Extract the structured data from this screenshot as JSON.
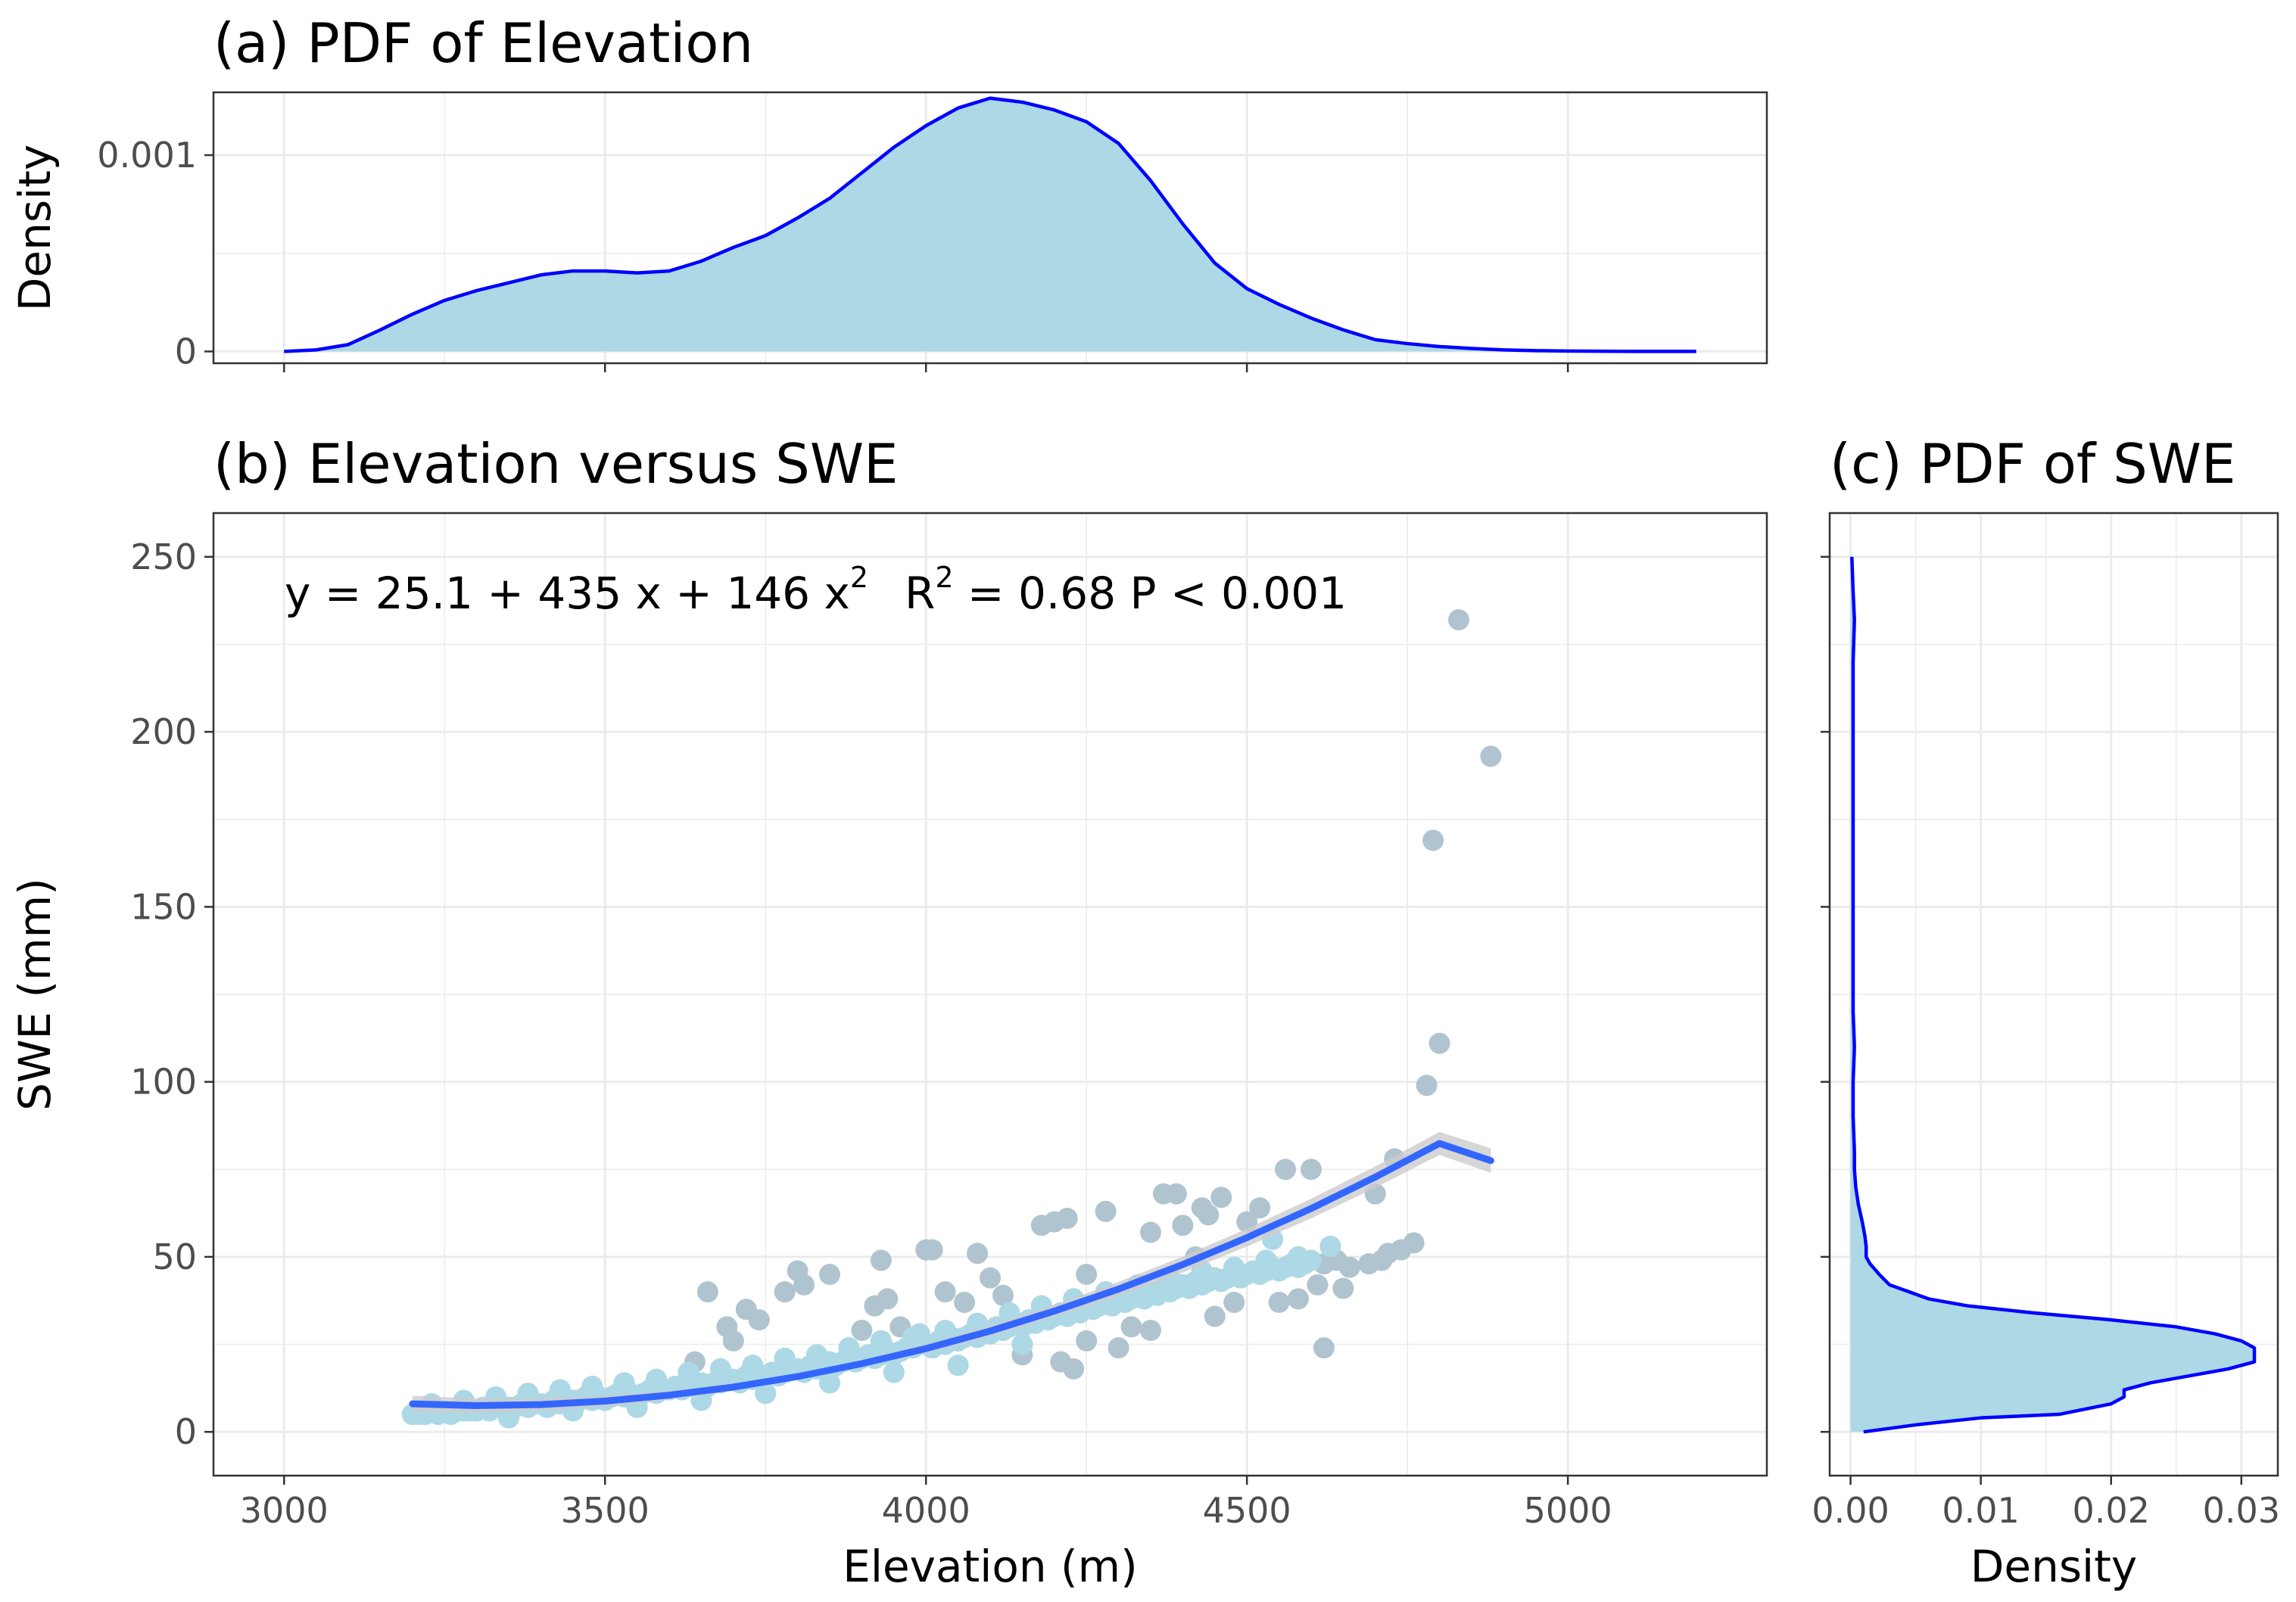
{
  "chart_data": [
    {
      "type": "area",
      "title": "(a) PDF of Elevation",
      "xlabel": "",
      "ylabel": "Density",
      "xlim": [
        2890,
        5310
      ],
      "ylim": [
        -6e-05,
        0.00132
      ],
      "x_ticks": [
        3000,
        3500,
        4000,
        4500,
        5000
      ],
      "y_ticks": [
        0,
        0.001
      ],
      "y_tick_labels": [
        "0",
        "0.001"
      ],
      "grid": true,
      "fill_color": "#add8e6",
      "line_color": "#0000ff",
      "series": [
        {
          "x": [
            3000,
            3050,
            3100,
            3150,
            3200,
            3250,
            3300,
            3350,
            3400,
            3450,
            3500,
            3550,
            3600,
            3650,
            3700,
            3750,
            3800,
            3850,
            3900,
            3950,
            4000,
            4050,
            4100,
            4150,
            4200,
            4250,
            4300,
            4350,
            4400,
            4450,
            4500,
            4550,
            4600,
            4650,
            4700,
            4750,
            4800,
            4850,
            4900,
            4950,
            5000,
            5050,
            5100,
            5150,
            5200
          ],
          "y": [
            0.0,
            8e-06,
            3.5e-05,
            0.00011,
            0.00019,
            0.00026,
            0.00031,
            0.00035,
            0.00039,
            0.00041,
            0.00041,
            0.0004,
            0.00041,
            0.00046,
            0.00053,
            0.00059,
            0.00068,
            0.00078,
            0.00091,
            0.00104,
            0.00115,
            0.00124,
            0.00129,
            0.00127,
            0.00123,
            0.00117,
            0.00106,
            0.00087,
            0.00065,
            0.00045,
            0.00032,
            0.00024,
            0.00017,
            0.00011,
            6e-05,
            4e-05,
            2.5e-05,
            1.5e-05,
            8e-06,
            4e-06,
            2e-06,
            1e-06,
            0.0,
            0.0,
            0.0
          ]
        }
      ]
    },
    {
      "type": "scatter",
      "title": "(b) Elevation versus SWE",
      "xlabel": "Elevation (m)",
      "ylabel": "SWE (mm)",
      "xlim": [
        2890,
        5310
      ],
      "ylim": [
        -12.5,
        262.5
      ],
      "x_ticks": [
        3000,
        3500,
        4000,
        4500,
        5000
      ],
      "y_ticks": [
        0,
        50,
        100,
        150,
        200,
        250
      ],
      "grid": true,
      "annotation": {
        "y_eq": "y = 25.1 + 435 x + 146 x",
        "r_label": "R",
        "r_eq": " = 0.68   P < 0.001",
        "superscript": "2"
      },
      "point_color_scattered": "#b0c4d0",
      "point_color_dense": "#add8e6",
      "fit_color": "#3366ff",
      "ribbon_color": "#cccccc",
      "fit": {
        "x": [
          3200,
          3300,
          3400,
          3500,
          3600,
          3700,
          3800,
          3900,
          4000,
          4100,
          4200,
          4300,
          4400,
          4500,
          4600,
          4700,
          4800,
          4880
        ],
        "y": [
          8.0,
          7.5,
          7.8,
          8.8,
          10.5,
          12.8,
          15.8,
          19.5,
          23.8,
          28.8,
          34.5,
          40.8,
          47.8,
          55.5,
          63.8,
          72.8,
          82.4,
          77.5
        ]
      },
      "points": [
        [
          3200,
          5
        ],
        [
          3210,
          5
        ],
        [
          3220,
          5
        ],
        [
          3230,
          6
        ],
        [
          3240,
          5
        ],
        [
          3250,
          6
        ],
        [
          3260,
          5
        ],
        [
          3270,
          6
        ],
        [
          3280,
          6
        ],
        [
          3290,
          6
        ],
        [
          3300,
          6
        ],
        [
          3310,
          7
        ],
        [
          3320,
          6
        ],
        [
          3330,
          7
        ],
        [
          3340,
          7
        ],
        [
          3350,
          7
        ],
        [
          3360,
          7
        ],
        [
          3370,
          8
        ],
        [
          3380,
          7
        ],
        [
          3390,
          8
        ],
        [
          3400,
          8
        ],
        [
          3410,
          7
        ],
        [
          3420,
          9
        ],
        [
          3430,
          8
        ],
        [
          3440,
          8
        ],
        [
          3450,
          9
        ],
        [
          3460,
          9
        ],
        [
          3470,
          10
        ],
        [
          3480,
          9
        ],
        [
          3490,
          10
        ],
        [
          3500,
          9
        ],
        [
          3510,
          10
        ],
        [
          3520,
          11
        ],
        [
          3530,
          10
        ],
        [
          3540,
          11
        ],
        [
          3550,
          10
        ],
        [
          3560,
          11
        ],
        [
          3570,
          12
        ],
        [
          3580,
          11
        ],
        [
          3590,
          12
        ],
        [
          3600,
          12
        ],
        [
          3610,
          13
        ],
        [
          3620,
          12
        ],
        [
          3630,
          13
        ],
        [
          3640,
          13
        ],
        [
          3650,
          14
        ],
        [
          3660,
          13
        ],
        [
          3670,
          14
        ],
        [
          3680,
          14
        ],
        [
          3690,
          15
        ],
        [
          3700,
          15
        ],
        [
          3710,
          14
        ],
        [
          3720,
          16
        ],
        [
          3730,
          15
        ],
        [
          3740,
          16
        ],
        [
          3750,
          16
        ],
        [
          3760,
          17
        ],
        [
          3770,
          16
        ],
        [
          3780,
          17
        ],
        [
          3790,
          18
        ],
        [
          3800,
          18
        ],
        [
          3810,
          17
        ],
        [
          3820,
          19
        ],
        [
          3830,
          18
        ],
        [
          3840,
          19
        ],
        [
          3850,
          20
        ],
        [
          3860,
          19
        ],
        [
          3870,
          20
        ],
        [
          3880,
          21
        ],
        [
          3890,
          20
        ],
        [
          3900,
          21
        ],
        [
          3910,
          22
        ],
        [
          3920,
          21
        ],
        [
          3930,
          22
        ],
        [
          3940,
          23
        ],
        [
          3950,
          22
        ],
        [
          3960,
          23
        ],
        [
          3970,
          24
        ],
        [
          3980,
          24
        ],
        [
          3990,
          25
        ],
        [
          4000,
          25
        ],
        [
          4010,
          24
        ],
        [
          4020,
          26
        ],
        [
          4030,
          25
        ],
        [
          4040,
          27
        ],
        [
          4050,
          26
        ],
        [
          4060,
          27
        ],
        [
          4070,
          28
        ],
        [
          4080,
          27
        ],
        [
          4090,
          29
        ],
        [
          4100,
          28
        ],
        [
          4110,
          30
        ],
        [
          4120,
          29
        ],
        [
          4130,
          30
        ],
        [
          4140,
          31
        ],
        [
          4150,
          30
        ],
        [
          4160,
          32
        ],
        [
          4170,
          31
        ],
        [
          4180,
          33
        ],
        [
          4190,
          32
        ],
        [
          4200,
          33
        ],
        [
          4210,
          34
        ],
        [
          4220,
          33
        ],
        [
          4230,
          35
        ],
        [
          4240,
          34
        ],
        [
          4250,
          36
        ],
        [
          4260,
          35
        ],
        [
          4270,
          36
        ],
        [
          4280,
          37
        ],
        [
          4290,
          36
        ],
        [
          4300,
          38
        ],
        [
          4310,
          37
        ],
        [
          4320,
          38
        ],
        [
          4330,
          39
        ],
        [
          4340,
          38
        ],
        [
          4350,
          40
        ],
        [
          4360,
          39
        ],
        [
          4370,
          41
        ],
        [
          4380,
          40
        ],
        [
          4390,
          41
        ],
        [
          4400,
          42
        ],
        [
          4410,
          41
        ],
        [
          4420,
          43
        ],
        [
          4430,
          42
        ],
        [
          4440,
          43
        ],
        [
          4450,
          44
        ],
        [
          4460,
          43
        ],
        [
          4470,
          44
        ],
        [
          4480,
          45
        ],
        [
          4490,
          44
        ],
        [
          4500,
          45
        ],
        [
          4510,
          46
        ],
        [
          4520,
          45
        ],
        [
          4530,
          46
        ],
        [
          4540,
          47
        ],
        [
          4550,
          46
        ],
        [
          4560,
          47
        ],
        [
          4570,
          48
        ],
        [
          4580,
          47
        ],
        [
          4590,
          48
        ],
        [
          4600,
          49
        ],
        [
          4620,
          48
        ],
        [
          4640,
          49
        ],
        [
          3230,
          8
        ],
        [
          3280,
          9
        ],
        [
          3330,
          10
        ],
        [
          3380,
          11
        ],
        [
          3430,
          12
        ],
        [
          3480,
          13
        ],
        [
          3530,
          14
        ],
        [
          3580,
          15
        ],
        [
          3630,
          17
        ],
        [
          3680,
          18
        ],
        [
          3730,
          19
        ],
        [
          3780,
          21
        ],
        [
          3830,
          22
        ],
        [
          3880,
          24
        ],
        [
          3930,
          26
        ],
        [
          3980,
          27
        ],
        [
          4030,
          29
        ],
        [
          4080,
          31
        ],
        [
          4130,
          34
        ],
        [
          4180,
          36
        ],
        [
          4230,
          38
        ],
        [
          4280,
          40
        ],
        [
          4330,
          42
        ],
        [
          4380,
          44
        ],
        [
          4430,
          46
        ],
        [
          4480,
          47
        ],
        [
          4530,
          49
        ],
        [
          4580,
          50
        ],
        [
          3350,
          4
        ],
        [
          3450,
          6
        ],
        [
          3550,
          7
        ],
        [
          3650,
          9
        ],
        [
          3750,
          11
        ],
        [
          3850,
          14
        ],
        [
          3950,
          17
        ],
        [
          4050,
          19
        ],
        [
          4150,
          22
        ],
        [
          4250,
          26
        ],
        [
          4350,
          29
        ],
        [
          4450,
          33
        ],
        [
          4550,
          37
        ],
        [
          4650,
          41
        ],
        [
          3640,
          20
        ],
        [
          3660,
          40
        ],
        [
          3690,
          30
        ],
        [
          3700,
          26
        ],
        [
          3720,
          35
        ],
        [
          3740,
          32
        ],
        [
          3780,
          40
        ],
        [
          3810,
          42
        ],
        [
          3800,
          46
        ],
        [
          3850,
          45
        ],
        [
          3880,
          21
        ],
        [
          3900,
          29
        ],
        [
          3920,
          36
        ],
        [
          3930,
          49
        ],
        [
          3940,
          38
        ],
        [
          3960,
          30
        ],
        [
          3990,
          28
        ],
        [
          4000,
          52
        ],
        [
          4010,
          52
        ],
        [
          4030,
          40
        ],
        [
          4060,
          37
        ],
        [
          4080,
          51
        ],
        [
          4100,
          44
        ],
        [
          4120,
          39
        ],
        [
          4150,
          25
        ],
        [
          4180,
          59
        ],
        [
          4200,
          60
        ],
        [
          4210,
          20
        ],
        [
          4220,
          61
        ],
        [
          4230,
          18
        ],
        [
          4250,
          45
        ],
        [
          4280,
          63
        ],
        [
          4300,
          24
        ],
        [
          4320,
          30
        ],
        [
          4350,
          57
        ],
        [
          4370,
          68
        ],
        [
          4390,
          68
        ],
        [
          4400,
          59
        ],
        [
          4420,
          50
        ],
        [
          4430,
          64
        ],
        [
          4440,
          62
        ],
        [
          4460,
          67
        ],
        [
          4480,
          37
        ],
        [
          4500,
          60
        ],
        [
          4520,
          64
        ],
        [
          4540,
          55
        ],
        [
          4560,
          75
        ],
        [
          4580,
          38
        ],
        [
          4600,
          75
        ],
        [
          4610,
          42
        ],
        [
          4620,
          24
        ],
        [
          4630,
          53
        ],
        [
          4660,
          47
        ],
        [
          4690,
          48
        ],
        [
          4710,
          49
        ],
        [
          4720,
          51
        ],
        [
          4740,
          52
        ],
        [
          4760,
          54
        ],
        [
          4700,
          68
        ],
        [
          4730,
          78
        ],
        [
          4780,
          99
        ],
        [
          4800,
          111
        ],
        [
          4790,
          169
        ],
        [
          4830,
          232
        ],
        [
          4880,
          193
        ]
      ]
    },
    {
      "type": "area",
      "title": "(c) PDF of SWE",
      "xlabel": "Density",
      "ylabel": "",
      "xlim": [
        -0.0016,
        0.0328
      ],
      "ylim": [
        -12.5,
        262.5
      ],
      "x_ticks": [
        0,
        0.01,
        0.02,
        0.03
      ],
      "x_tick_labels": [
        "0.00",
        "0.01",
        "0.02",
        "0.03"
      ],
      "grid": true,
      "fill_color": "#add8e6",
      "line_color": "#0000ff",
      "series": [
        {
          "y": [
            0,
            2,
            4,
            5,
            8,
            10,
            12,
            14,
            16,
            18,
            20,
            22,
            24,
            26,
            28,
            30,
            32,
            34,
            36,
            38,
            40,
            42,
            45,
            48,
            50,
            53,
            56,
            60,
            65,
            70,
            75,
            80,
            90,
            100,
            110,
            120,
            140,
            160,
            180,
            200,
            220,
            232,
            240,
            250
          ],
          "x": [
            0.001,
            0.005,
            0.01,
            0.016,
            0.02,
            0.021,
            0.021,
            0.023,
            0.026,
            0.029,
            0.031,
            0.031,
            0.031,
            0.03,
            0.028,
            0.025,
            0.02,
            0.014,
            0.009,
            0.006,
            0.0045,
            0.003,
            0.0022,
            0.0015,
            0.0012,
            0.0012,
            0.0011,
            0.0009,
            0.0006,
            0.0004,
            0.0003,
            0.0003,
            0.0002,
            0.0002,
            0.0003,
            0.0002,
            0.0002,
            0.0002,
            0.0002,
            0.0002,
            0.0002,
            0.0003,
            0.0002,
            0.0001
          ]
        }
      ]
    }
  ]
}
